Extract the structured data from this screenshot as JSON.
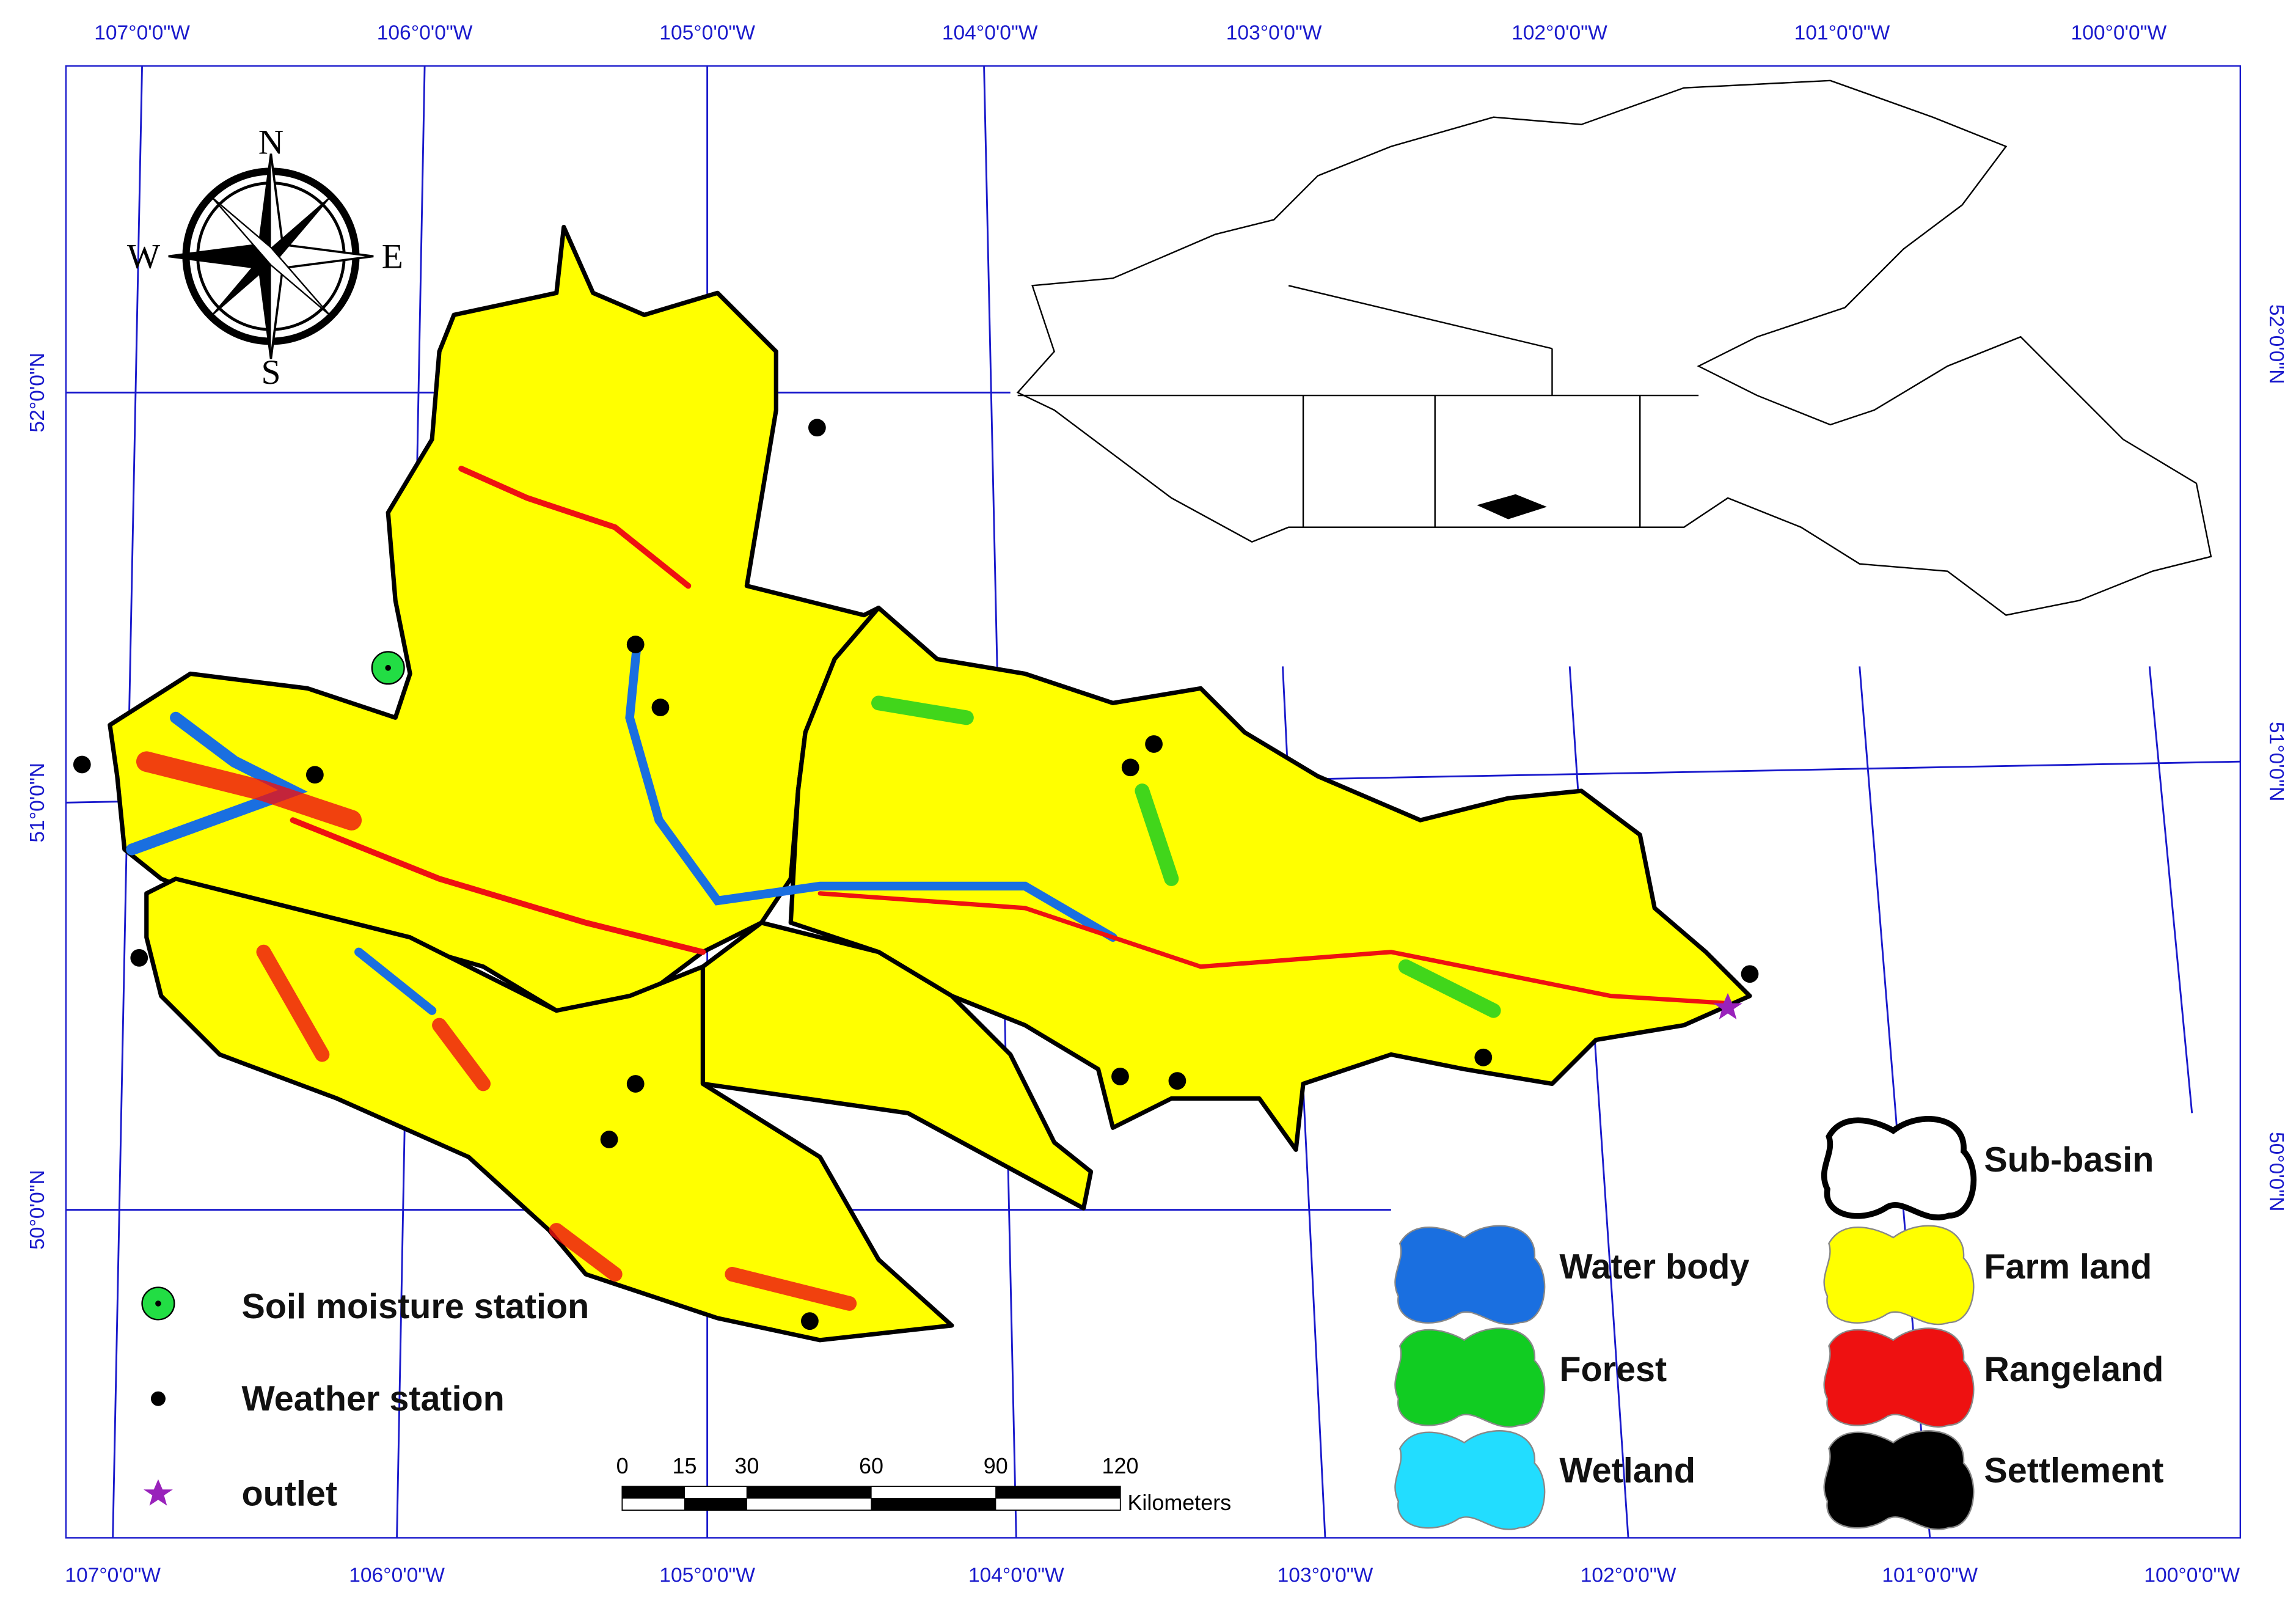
{
  "graticule": {
    "longitudes": [
      "107°0'0\"W",
      "106°0'0\"W",
      "105°0'0\"W",
      "104°0'0\"W",
      "103°0'0\"W",
      "102°0'0\"W",
      "101°0'0\"W",
      "100°0'0\"W"
    ],
    "latitudes": [
      "52°0'0\"N",
      "51°0'0\"N",
      "50°0'0\"N"
    ]
  },
  "compass": {
    "n": "N",
    "s": "S",
    "e": "E",
    "w": "W"
  },
  "point_legend": [
    "Soil moisture station",
    "Weather station",
    "outlet"
  ],
  "land_legend": {
    "sub_basin": "Sub-basin",
    "water_body": "Water body",
    "farm_land": "Farm land",
    "forest": "Forest",
    "rangeland": "Rangeland",
    "wetland": "Wetland",
    "settlement": "Settlement"
  },
  "scale_bar": {
    "ticks": [
      0,
      15,
      30,
      60,
      90,
      120
    ],
    "unit": "Kilometers"
  }
}
